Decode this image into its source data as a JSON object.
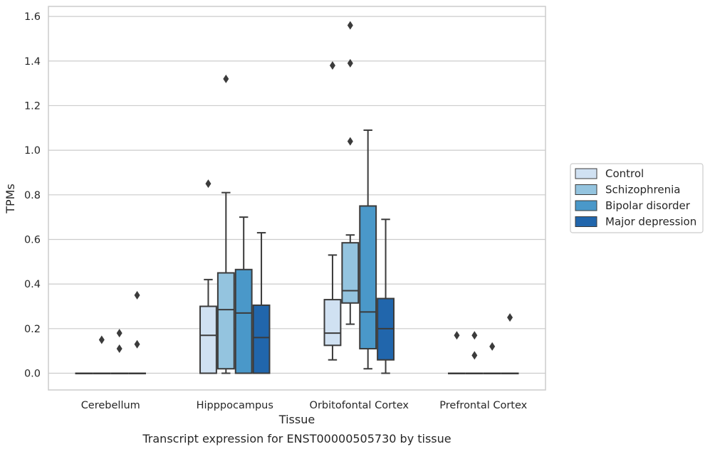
{
  "chart_data": {
    "type": "boxplot",
    "title": "",
    "caption": "Transcript expression for ENST00000505730 by tissue",
    "xlabel": "Tissue",
    "ylabel": "TPMs",
    "ylim": [
      -0.075,
      1.645
    ],
    "yticks": [
      "0.0",
      "0.2",
      "0.4",
      "0.6",
      "0.8",
      "1.0",
      "1.2",
      "1.4",
      "1.6"
    ],
    "ytick_values": [
      0,
      0.2,
      0.4,
      0.6,
      0.8,
      1.0,
      1.2,
      1.4,
      1.6
    ],
    "grid": "horizontal",
    "legend_placement": "outside-right",
    "categories": [
      "Cerebellum",
      "Hipppocampus",
      "Orbitofontal Cortex",
      "Prefrontal Cortex"
    ],
    "series": [
      {
        "name": "Control",
        "color": "#d0e1f2",
        "boxes": [
          {
            "q1": 0,
            "median": 0,
            "q3": 0,
            "whisker_low": 0,
            "whisker_high": 0,
            "outliers": []
          },
          {
            "q1": 0,
            "median": 0.17,
            "q3": 0.3,
            "whisker_low": 0,
            "whisker_high": 0.42,
            "outliers": [
              0.85
            ]
          },
          {
            "q1": 0.125,
            "median": 0.18,
            "q3": 0.33,
            "whisker_low": 0.06,
            "whisker_high": 0.53,
            "outliers": [
              1.38
            ]
          },
          {
            "q1": 0,
            "median": 0,
            "q3": 0,
            "whisker_low": 0,
            "whisker_high": 0,
            "outliers": [
              0.17
            ]
          }
        ]
      },
      {
        "name": "Schizophrenia",
        "color": "#94c4df",
        "boxes": [
          {
            "q1": 0,
            "median": 0,
            "q3": 0,
            "whisker_low": 0,
            "whisker_high": 0,
            "outliers": [
              0.15
            ]
          },
          {
            "q1": 0.02,
            "median": 0.285,
            "q3": 0.45,
            "whisker_low": 0,
            "whisker_high": 0.81,
            "outliers": [
              1.32
            ]
          },
          {
            "q1": 0.315,
            "median": 0.37,
            "q3": 0.585,
            "whisker_low": 0.22,
            "whisker_high": 0.62,
            "outliers": [
              1.04,
              1.39,
              1.56
            ]
          },
          {
            "q1": 0,
            "median": 0,
            "q3": 0,
            "whisker_low": 0,
            "whisker_high": 0,
            "outliers": [
              0.08,
              0.17
            ]
          }
        ]
      },
      {
        "name": "Bipolar disorder",
        "color": "#4a98c9",
        "boxes": [
          {
            "q1": 0,
            "median": 0,
            "q3": 0,
            "whisker_low": 0,
            "whisker_high": 0,
            "outliers": [
              0.11,
              0.18
            ]
          },
          {
            "q1": 0,
            "median": 0.27,
            "q3": 0.465,
            "whisker_low": 0,
            "whisker_high": 0.7,
            "outliers": []
          },
          {
            "q1": 0.11,
            "median": 0.275,
            "q3": 0.75,
            "whisker_low": 0.02,
            "whisker_high": 1.09,
            "outliers": []
          },
          {
            "q1": 0,
            "median": 0,
            "q3": 0,
            "whisker_low": 0,
            "whisker_high": 0,
            "outliers": [
              0.12
            ]
          }
        ]
      },
      {
        "name": "Major depression",
        "color": "#2166ac",
        "boxes": [
          {
            "q1": 0,
            "median": 0,
            "q3": 0,
            "whisker_low": 0,
            "whisker_high": 0,
            "outliers": [
              0.13,
              0.35
            ]
          },
          {
            "q1": 0,
            "median": 0.16,
            "q3": 0.305,
            "whisker_low": 0,
            "whisker_high": 0.63,
            "outliers": []
          },
          {
            "q1": 0.06,
            "median": 0.2,
            "q3": 0.335,
            "whisker_low": 0,
            "whisker_high": 0.69,
            "outliers": []
          },
          {
            "q1": 0,
            "median": 0,
            "q3": 0,
            "whisker_low": 0,
            "whisker_high": 0,
            "outliers": [
              0.25
            ]
          }
        ]
      }
    ]
  }
}
